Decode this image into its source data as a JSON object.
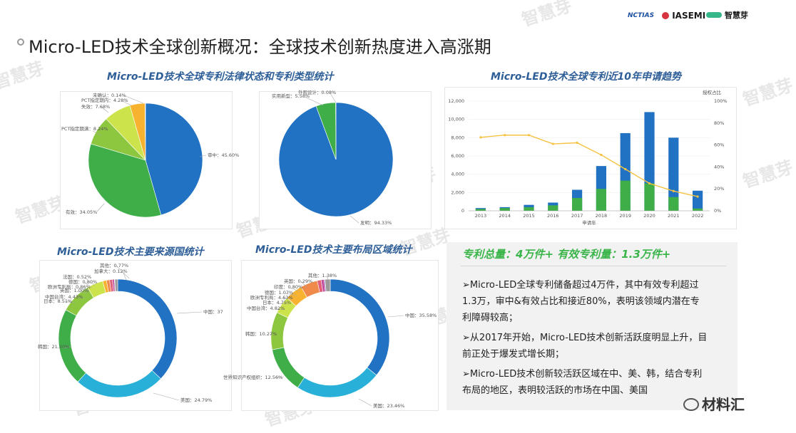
{
  "header": {
    "title": "Micro-LED技术全球创新概况：全球技术创新热度进入高涨期",
    "logos": [
      "NCTIAS",
      "IASEMI",
      "智慧芽"
    ]
  },
  "watermark": "智慧芽",
  "footer_brand": "材料汇",
  "summary": {
    "headline": "专利总量：4万件+ 有效专利量：1.3万件+",
    "bullets": [
      "➢Micro-LED全球专利储备超过4万件，其中有效专利超过1.3万，审中&有效占比和接近80%，表明该领域内潜在专利障碍较高；",
      "➢从2017年开始，Micro-LED技术创新活跃度明显上升，目前正处于爆发式增长期；",
      "➢Micro-LED技术创新较活跃区域在中、美、韩，结合专利布局的地区，表明较活跃的市场在中国、美国"
    ]
  },
  "chart_data": [
    {
      "type": "pie",
      "title": "Micro-LED技术全球专利法律状态和专利类型统计",
      "slices": [
        {
          "label": "审中",
          "value": 45.6,
          "color": "#2272c3"
        },
        {
          "label": "有效",
          "value": 34.05,
          "color": "#3fae49"
        },
        {
          "label": "PCT指定期满",
          "value": 8.24,
          "color": "#8dc63f"
        },
        {
          "label": "失效",
          "value": 7.68,
          "color": "#cde34b"
        },
        {
          "label": "PCT指定期内",
          "value": 4.28,
          "color": "#f7b230"
        },
        {
          "label": "未确认",
          "value": 0.14,
          "color": "#e25f7a"
        }
      ],
      "label_texts": [
        "审中：45.60%",
        "有效：34.05%",
        "PCT指定期满：8.24%",
        "失效：7.68%",
        "PCT指定期内：4.28%",
        "未确认：0.14%"
      ]
    },
    {
      "type": "pie",
      "slices": [
        {
          "label": "发明",
          "value": 94.33,
          "color": "#2272c3"
        },
        {
          "label": "实用新型",
          "value": 5.58,
          "color": "#3fae49"
        },
        {
          "label": "外观设计",
          "value": 0.08,
          "color": "#8dc63f"
        }
      ],
      "label_texts": [
        "发明：94.33%",
        "实用新型：5.58%",
        "外观设计：0.08%"
      ]
    },
    {
      "type": "bar",
      "title": "Micro-LED技术全球专利近10年申请趋势",
      "categories": [
        "2013",
        "2014",
        "2015",
        "2016",
        "2017",
        "2018",
        "2019",
        "2020",
        "2021",
        "2022"
      ],
      "xlabel": "申请年",
      "y2label": "授权占比",
      "ylim": [
        0,
        12000
      ],
      "y_ticks": [
        "0",
        "2,000",
        "4,000",
        "6,000",
        "8,000",
        "10,000",
        "12,000"
      ],
      "y2lim": [
        0,
        100
      ],
      "y2_ticks": [
        "0%",
        "20%",
        "40%",
        "60%",
        "80%",
        "100%"
      ],
      "series": [
        {
          "values": [
            300,
            400,
            650,
            900,
            2300,
            4900,
            8500,
            10800,
            8000,
            2200
          ],
          "color": "#2272c3"
        },
        {
          "values": [
            200,
            300,
            400,
            600,
            1400,
            2400,
            3300,
            3000,
            1500,
            250
          ],
          "color": "#3fae49"
        },
        {
          "type": "line",
          "values": [
            67,
            69,
            69,
            61,
            62,
            51,
            38,
            25,
            18,
            13
          ],
          "color": "#f5c242"
        }
      ]
    },
    {
      "type": "pie",
      "title": "Micro-LED技术主要来源国统计",
      "donut": true,
      "slices": [
        {
          "label": "中国",
          "value": 37,
          "color": "#2272c3"
        },
        {
          "label": "美国",
          "value": 24.79,
          "color": "#29b0d8"
        },
        {
          "label": "韩国",
          "value": 21.2,
          "color": "#3fae49"
        },
        {
          "label": "日本",
          "value": 8.51,
          "color": "#8dc63f"
        },
        {
          "label": "中国台湾",
          "value": 4.43,
          "color": "#cde34b"
        },
        {
          "label": "英国",
          "value": 1.0,
          "color": "#f7b230"
        },
        {
          "label": "欧洲专利局",
          "value": 0.86,
          "color": "#f08a4b"
        },
        {
          "label": "德国",
          "value": 0.8,
          "color": "#e25f7a"
        },
        {
          "label": "法国",
          "value": 0.52,
          "color": "#c04e9c"
        },
        {
          "label": "加拿大",
          "value": 0.12,
          "color": "#8e63b7"
        },
        {
          "label": "其他",
          "value": 0.77,
          "color": "#9a9a9a"
        }
      ],
      "label_texts": [
        "中国：37",
        "美国：24.79%",
        "韩国：21.20%",
        "日本：8.51%",
        "中国台湾：4.43%",
        "英国：1.00%",
        "欧洲专利局：0.86%",
        "德国：0.80%",
        "法国：0.52%",
        "加拿大：0.12%",
        "其他：0.77%"
      ]
    },
    {
      "type": "pie",
      "title": "Micro-LED技术主要布局区域统计",
      "donut": true,
      "slices": [
        {
          "label": "中国",
          "value": 35.58,
          "color": "#2272c3"
        },
        {
          "label": "美国",
          "value": 23.46,
          "color": "#29b0d8"
        },
        {
          "label": "世界知识产权组织",
          "value": 12.56,
          "color": "#3fae49"
        },
        {
          "label": "韩国",
          "value": 10.27,
          "color": "#8dc63f"
        },
        {
          "label": "中国台湾",
          "value": 4.82,
          "color": "#cde34b"
        },
        {
          "label": "日本",
          "value": 4.75,
          "color": "#f7b230"
        },
        {
          "label": "欧洲专利局",
          "value": 4.63,
          "color": "#f08a4b"
        },
        {
          "label": "德国",
          "value": 1.07,
          "color": "#e25f7a"
        },
        {
          "label": "印度",
          "value": 0.8,
          "color": "#c04e9c"
        },
        {
          "label": "英国",
          "value": 0.29,
          "color": "#8e63b7"
        },
        {
          "label": "其他",
          "value": 1.38,
          "color": "#9a9a9a"
        }
      ],
      "label_texts": [
        "中国：35.58%",
        "美国：23.46%",
        "世界知识产权组织：12.56%",
        "韩国：10.27%",
        "中国台湾：4.82%",
        "日本：4.75%",
        "欧洲专利局：4.63%",
        "德国：1.07%",
        "印度：0.80%",
        "英国：0.29%",
        "其他：1.38%"
      ]
    }
  ]
}
